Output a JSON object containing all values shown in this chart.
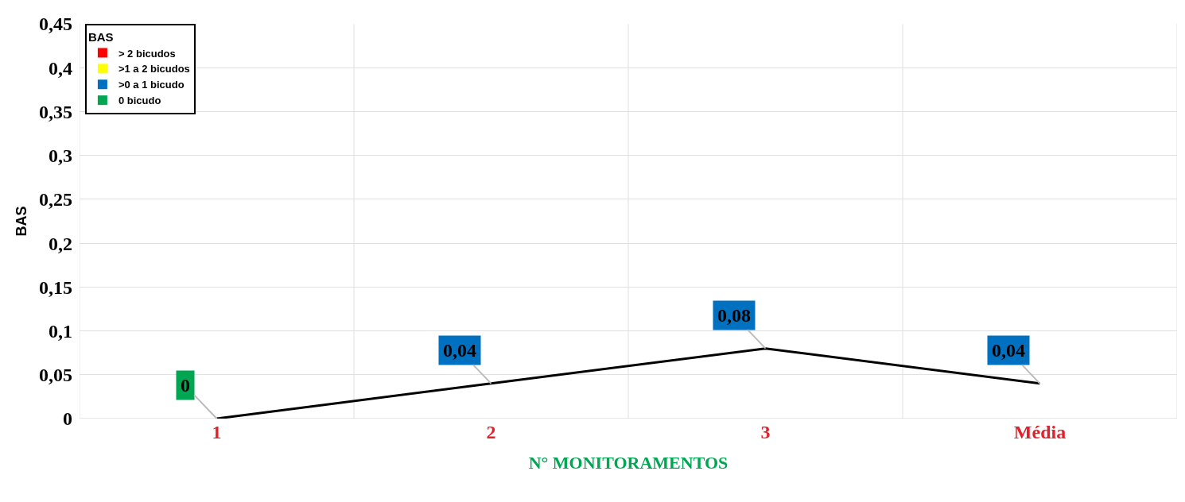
{
  "chart_data": {
    "type": "line",
    "xlabel": "N° MONITORAMENTOS",
    "ylabel": "BAS",
    "legend_title": "BAS",
    "categories": [
      "1",
      "2",
      "3",
      "Média"
    ],
    "series": [
      {
        "color": "#000000",
        "values": [
          0,
          0.04,
          0.08,
          0.04
        ],
        "value_labels": [
          "0",
          "0,04",
          "0,08",
          "0,04"
        ],
        "colors": [
          "#00a651",
          "#0070c0",
          "#0070c0",
          "#0070c0"
        ]
      },
      {
        "type": "bar",
        "name": "> 2 bicudos",
        "color": "#ff0000",
        "values": [
          null,
          null,
          null,
          null
        ]
      },
      {
        "type": "bar",
        "name": ">1 a 2 bicudos",
        "color": "#ffff00",
        "values": [
          null,
          null,
          null,
          null
        ]
      },
      {
        "type": "bar",
        "name": ">0 a 1 bicudo",
        "color": "#0070c0",
        "values": [
          null,
          null,
          null,
          null
        ]
      },
      {
        "type": "bar",
        "name": "0 bicudo",
        "color": "#00a651",
        "values": [
          null,
          null,
          null,
          null
        ]
      }
    ],
    "ylim": [
      0,
      0.45
    ],
    "yticks": [
      0,
      {
        "value": 0.05,
        "label": "0,05"
      },
      {
        "value": 0.1,
        "label": "0,1"
      },
      {
        "value": 0.15,
        "label": "0,15"
      },
      {
        "value": 0.2,
        "label": "0,2"
      },
      {
        "value": 0.25,
        "label": "0,25"
      },
      {
        "value": 0.3,
        "label": "0,3"
      },
      {
        "value": 0.35,
        "label": "0,35"
      },
      {
        "value": 0.4,
        "label": "0,4"
      },
      {
        "value": 0.45,
        "label": "0,45"
      }
    ],
    "grid": true,
    "legend": "top left",
    "marker": "none",
    "line_style": "solid"
  }
}
